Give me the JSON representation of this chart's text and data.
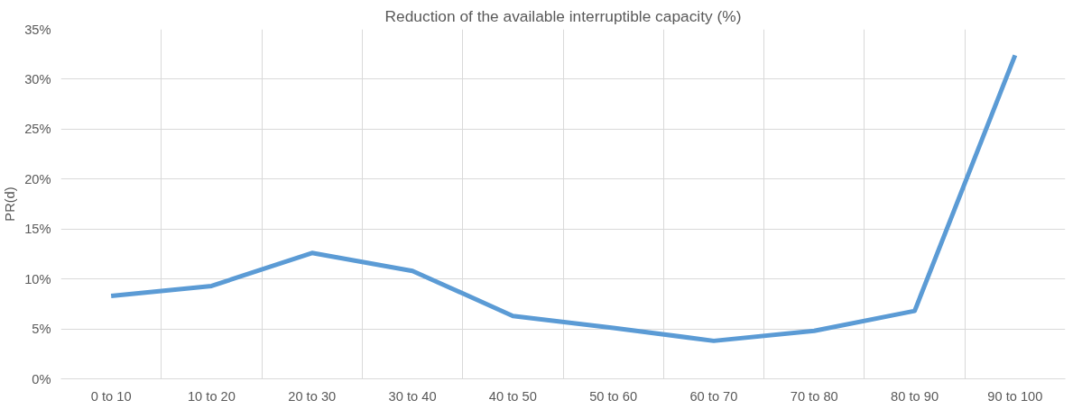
{
  "chart_data": {
    "type": "line",
    "title": "Reduction of the available interruptible capacity (%)",
    "ylabel": "PR(d)",
    "categories": [
      "0 to 10",
      "10 to 20",
      "20 to 30",
      "30 to 40",
      "40 to 50",
      "50 to 60",
      "60 to 70",
      "70 to 80",
      "80 to 90",
      "90 to 100"
    ],
    "series": [
      {
        "color": "#5b9bd5",
        "values": [
          8.3,
          9.3,
          12.6,
          10.8,
          6.3,
          5.1,
          3.8,
          4.8,
          6.8,
          32.4
        ]
      }
    ],
    "ylim": [
      0,
      35
    ],
    "yticks": [
      {
        "value": 0,
        "label": "0%"
      },
      {
        "value": 5,
        "label": "5%"
      },
      {
        "value": 10,
        "label": "10%"
      },
      {
        "value": 15,
        "label": "15%"
      },
      {
        "value": 20,
        "label": "20%"
      },
      {
        "value": 25,
        "label": "25%"
      },
      {
        "value": 30,
        "label": "30%"
      },
      {
        "value": 35,
        "label": "35%"
      }
    ],
    "grid": true,
    "marker": "none",
    "line_style": "solid"
  }
}
